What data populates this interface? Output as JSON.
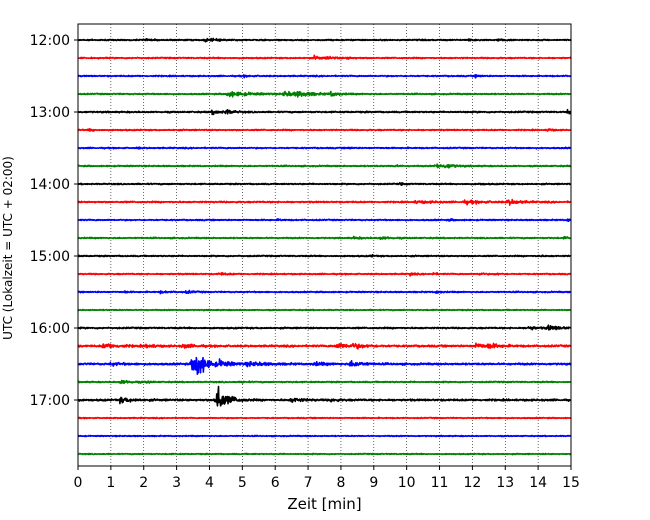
{
  "chart_data": {
    "type": "line",
    "title": "",
    "xlabel": "Zeit  [min]",
    "ylabel": "UTC (Lokalzeit = UTC + 02:00)",
    "xlim": [
      0,
      15
    ],
    "x_ticks": [
      "0",
      "1",
      "2",
      "3",
      "4",
      "5",
      "6",
      "7",
      "8",
      "9",
      "10",
      "11",
      "12",
      "13",
      "14",
      "15"
    ],
    "y_ticks": [
      "12:00",
      "13:00",
      "14:00",
      "15:00",
      "16:00",
      "17:00"
    ],
    "grid": "vertical-dotted",
    "trace_interval_minutes": 15,
    "trace_colors": [
      "#000000",
      "#ff0000",
      "#0000ff",
      "#008000"
    ],
    "traces": [
      {
        "start": "12:00",
        "color": "#000000",
        "noise": 0.6,
        "events": [
          [
            2.0,
            0.8,
            0.2
          ],
          [
            3.9,
            1.4,
            0.35
          ],
          [
            11.9,
            0.8,
            0.2
          ],
          [
            12.8,
            1.0,
            0.2
          ]
        ]
      },
      {
        "start": "12:15",
        "color": "#ff0000",
        "noise": 0.6,
        "events": [
          [
            7.2,
            1.8,
            0.2
          ],
          [
            7.6,
            1.2,
            0.2
          ],
          [
            8.2,
            0.8,
            0.2
          ]
        ]
      },
      {
        "start": "12:30",
        "color": "#0000ff",
        "noise": 0.6,
        "events": [
          [
            5.0,
            0.8,
            0.2
          ],
          [
            12.1,
            1.6,
            0.1
          ]
        ]
      },
      {
        "start": "12:45",
        "color": "#008000",
        "noise": 0.6,
        "events": [
          [
            4.6,
            2.4,
            0.6
          ],
          [
            6.3,
            2.2,
            0.5
          ],
          [
            6.7,
            1.8,
            0.4
          ],
          [
            7.7,
            2.2,
            0.2
          ]
        ]
      },
      {
        "start": "13:00",
        "color": "#000000",
        "noise": 0.7,
        "events": [
          [
            4.1,
            2.4,
            0.2
          ],
          [
            4.5,
            2.0,
            0.2
          ],
          [
            14.9,
            2.2,
            0.1
          ]
        ]
      },
      {
        "start": "13:15",
        "color": "#ff0000",
        "noise": 0.6,
        "events": [
          [
            0.35,
            2.0,
            0.1
          ],
          [
            14.3,
            1.8,
            0.1
          ]
        ]
      },
      {
        "start": "13:30",
        "color": "#0000ff",
        "noise": 0.6,
        "events": [
          [
            1.8,
            0.8,
            0.1
          ],
          [
            8.2,
            0.8,
            0.1
          ]
        ]
      },
      {
        "start": "13:45",
        "color": "#008000",
        "noise": 0.6,
        "events": [
          [
            9.6,
            1.2,
            0.1
          ],
          [
            10.9,
            2.2,
            0.3
          ],
          [
            11.2,
            1.6,
            0.2
          ]
        ]
      },
      {
        "start": "14:00",
        "color": "#000000",
        "noise": 0.6,
        "events": [
          [
            9.8,
            1.0,
            0.1
          ],
          [
            12.2,
            0.8,
            0.1
          ]
        ]
      },
      {
        "start": "14:15",
        "color": "#ff0000",
        "noise": 0.7,
        "events": [
          [
            10.3,
            1.0,
            0.5
          ],
          [
            11.8,
            1.4,
            0.5
          ],
          [
            13.1,
            2.6,
            0.3
          ]
        ]
      },
      {
        "start": "14:30",
        "color": "#0000ff",
        "noise": 0.6,
        "events": [
          [
            6.1,
            1.0,
            0.1
          ],
          [
            11.3,
            1.0,
            0.1
          ],
          [
            14.9,
            1.8,
            0.1
          ]
        ]
      },
      {
        "start": "14:45",
        "color": "#008000",
        "noise": 0.6,
        "events": [
          [
            8.4,
            1.0,
            0.2
          ],
          [
            9.2,
            1.2,
            0.3
          ],
          [
            14.8,
            1.2,
            0.1
          ]
        ]
      },
      {
        "start": "15:00",
        "color": "#000000",
        "noise": 0.6,
        "events": [
          [
            8.9,
            1.0,
            0.1
          ],
          [
            14.0,
            1.0,
            0.1
          ]
        ]
      },
      {
        "start": "15:15",
        "color": "#ff0000",
        "noise": 0.6,
        "events": [
          [
            4.3,
            1.2,
            0.2
          ],
          [
            10.1,
            1.6,
            0.1
          ],
          [
            10.8,
            1.4,
            0.1
          ],
          [
            12.2,
            1.6,
            0.1
          ],
          [
            12.7,
            1.2,
            0.1
          ]
        ]
      },
      {
        "start": "15:30",
        "color": "#0000ff",
        "noise": 0.6,
        "events": [
          [
            1.4,
            1.0,
            0.1
          ],
          [
            2.5,
            1.0,
            0.2
          ],
          [
            3.3,
            1.2,
            0.2
          ],
          [
            10.9,
            1.8,
            0.1
          ]
        ]
      },
      {
        "start": "15:45",
        "color": "#008000",
        "noise": 0.5,
        "events": []
      },
      {
        "start": "16:00",
        "color": "#000000",
        "noise": 0.7,
        "events": [
          [
            13.7,
            2.0,
            0.2
          ],
          [
            14.3,
            2.2,
            0.4
          ]
        ]
      },
      {
        "start": "16:15",
        "color": "#ff0000",
        "noise": 0.9,
        "events": [
          [
            0.8,
            2.2,
            0.4
          ],
          [
            2.1,
            1.6,
            0.2
          ],
          [
            3.2,
            1.8,
            0.3
          ],
          [
            7.9,
            2.4,
            0.4
          ],
          [
            8.4,
            1.8,
            0.3
          ],
          [
            12.1,
            2.4,
            0.3
          ],
          [
            12.5,
            2.0,
            0.3
          ]
        ]
      },
      {
        "start": "16:30",
        "color": "#0000ff",
        "noise": 0.9,
        "events": [
          [
            1.0,
            1.2,
            0.3
          ],
          [
            3.5,
            8.0,
            0.4
          ],
          [
            3.6,
            12.0,
            0.15
          ],
          [
            4.3,
            2.4,
            0.3
          ],
          [
            5.2,
            1.8,
            0.5
          ],
          [
            7.2,
            1.6,
            0.3
          ],
          [
            8.3,
            3.0,
            0.3
          ]
        ]
      },
      {
        "start": "16:45",
        "color": "#008000",
        "noise": 0.6,
        "events": [
          [
            1.3,
            1.8,
            0.3
          ],
          [
            2.1,
            1.0,
            0.1
          ],
          [
            5.0,
            1.2,
            0.1
          ]
        ]
      },
      {
        "start": "17:00",
        "color": "#000000",
        "noise": 0.9,
        "events": [
          [
            1.3,
            2.6,
            0.3
          ],
          [
            4.2,
            10.0,
            0.25
          ],
          [
            4.25,
            14.0,
            0.08
          ],
          [
            4.6,
            2.4,
            0.2
          ],
          [
            6.5,
            2.0,
            0.3
          ],
          [
            7.7,
            1.4,
            0.2
          ]
        ]
      },
      {
        "start": "17:15",
        "color": "#ff0000",
        "noise": 0.5,
        "events": []
      },
      {
        "start": "17:30",
        "color": "#0000ff",
        "noise": 0.5,
        "events": []
      },
      {
        "start": "17:45",
        "color": "#008000",
        "noise": 0.5,
        "events": []
      }
    ]
  }
}
